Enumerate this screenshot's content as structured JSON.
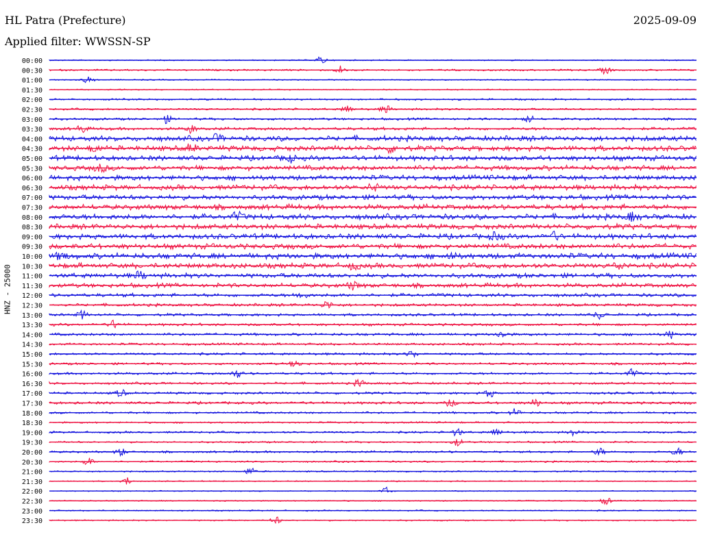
{
  "header": {
    "station": "HL Patra (Prefecture)",
    "date": "2025-09-09",
    "filter": "Applied filter: WWSSN-SP"
  },
  "chart_data": {
    "type": "line",
    "channel_label": "HNZ - 25000",
    "colors": [
      "#1010dd",
      "#ee1040"
    ],
    "rows": [
      {
        "time": "00:00",
        "activity": 0.05,
        "events": [
          0.42
        ]
      },
      {
        "time": "00:30",
        "activity": 0.15,
        "events": [
          0.45,
          0.86
        ]
      },
      {
        "time": "01:00",
        "activity": 0.05,
        "events": [
          0.06
        ]
      },
      {
        "time": "01:30",
        "activity": 0.05,
        "events": []
      },
      {
        "time": "02:00",
        "activity": 0.15,
        "events": []
      },
      {
        "time": "02:30",
        "activity": 0.2,
        "events": [
          0.46,
          0.52
        ]
      },
      {
        "time": "03:00",
        "activity": 0.25,
        "events": [
          0.74,
          0.18
        ]
      },
      {
        "time": "03:30",
        "activity": 0.35,
        "events": [
          0.05,
          0.22
        ]
      },
      {
        "time": "04:00",
        "activity": 0.75,
        "events": [
          0.26
        ]
      },
      {
        "time": "04:30",
        "activity": 0.75,
        "events": [
          0.07,
          0.22,
          0.53
        ]
      },
      {
        "time": "05:00",
        "activity": 0.7,
        "events": [
          0.37
        ]
      },
      {
        "time": "05:30",
        "activity": 0.7,
        "events": [
          0.08
        ]
      },
      {
        "time": "06:00",
        "activity": 0.7,
        "events": []
      },
      {
        "time": "06:30",
        "activity": 0.75,
        "events": [
          0.5
        ]
      },
      {
        "time": "07:00",
        "activity": 0.7,
        "events": []
      },
      {
        "time": "07:30",
        "activity": 0.75,
        "events": []
      },
      {
        "time": "08:00",
        "activity": 0.8,
        "events": [
          0.29,
          0.9
        ]
      },
      {
        "time": "08:30",
        "activity": 0.75,
        "events": []
      },
      {
        "time": "09:00",
        "activity": 0.75,
        "events": [
          0.69,
          0.78
        ]
      },
      {
        "time": "09:30",
        "activity": 0.75,
        "events": []
      },
      {
        "time": "10:00",
        "activity": 0.8,
        "events": [
          0.02,
          0.62
        ]
      },
      {
        "time": "10:30",
        "activity": 0.75,
        "events": [
          0.47,
          0.88
        ]
      },
      {
        "time": "11:00",
        "activity": 0.65,
        "events": [
          0.14
        ]
      },
      {
        "time": "11:30",
        "activity": 0.6,
        "events": [
          0.47
        ]
      },
      {
        "time": "12:00",
        "activity": 0.45,
        "events": [
          0.39
        ]
      },
      {
        "time": "12:30",
        "activity": 0.35,
        "events": [
          0.43
        ]
      },
      {
        "time": "13:00",
        "activity": 0.3,
        "events": [
          0.05,
          0.85
        ]
      },
      {
        "time": "13:30",
        "activity": 0.3,
        "events": [
          0.1
        ]
      },
      {
        "time": "14:00",
        "activity": 0.3,
        "events": [
          0.7,
          0.96
        ]
      },
      {
        "time": "14:30",
        "activity": 0.25,
        "events": []
      },
      {
        "time": "15:00",
        "activity": 0.25,
        "events": [
          0.56
        ]
      },
      {
        "time": "15:30",
        "activity": 0.25,
        "events": [
          0.38
        ]
      },
      {
        "time": "16:00",
        "activity": 0.25,
        "events": [
          0.29,
          0.9
        ]
      },
      {
        "time": "16:30",
        "activity": 0.25,
        "events": [
          0.48
        ]
      },
      {
        "time": "17:00",
        "activity": 0.25,
        "events": [
          0.11,
          0.68
        ]
      },
      {
        "time": "17:30",
        "activity": 0.3,
        "events": [
          0.62,
          0.75
        ]
      },
      {
        "time": "18:00",
        "activity": 0.2,
        "events": [
          0.72
        ]
      },
      {
        "time": "18:30",
        "activity": 0.15,
        "events": []
      },
      {
        "time": "19:00",
        "activity": 0.2,
        "events": [
          0.63,
          0.69,
          0.81
        ]
      },
      {
        "time": "19:30",
        "activity": 0.15,
        "events": [
          0.63
        ]
      },
      {
        "time": "20:00",
        "activity": 0.2,
        "events": [
          0.11,
          0.85,
          0.97
        ]
      },
      {
        "time": "20:30",
        "activity": 0.15,
        "events": [
          0.06
        ]
      },
      {
        "time": "21:00",
        "activity": 0.1,
        "events": [
          0.31
        ]
      },
      {
        "time": "21:30",
        "activity": 0.05,
        "events": [
          0.12
        ]
      },
      {
        "time": "22:00",
        "activity": 0.03,
        "events": [
          0.52
        ]
      },
      {
        "time": "22:30",
        "activity": 0.05,
        "events": [
          0.86
        ]
      },
      {
        "time": "23:00",
        "activity": 0.08,
        "events": []
      },
      {
        "time": "23:30",
        "activity": 0.08,
        "events": [
          0.35
        ]
      }
    ]
  }
}
